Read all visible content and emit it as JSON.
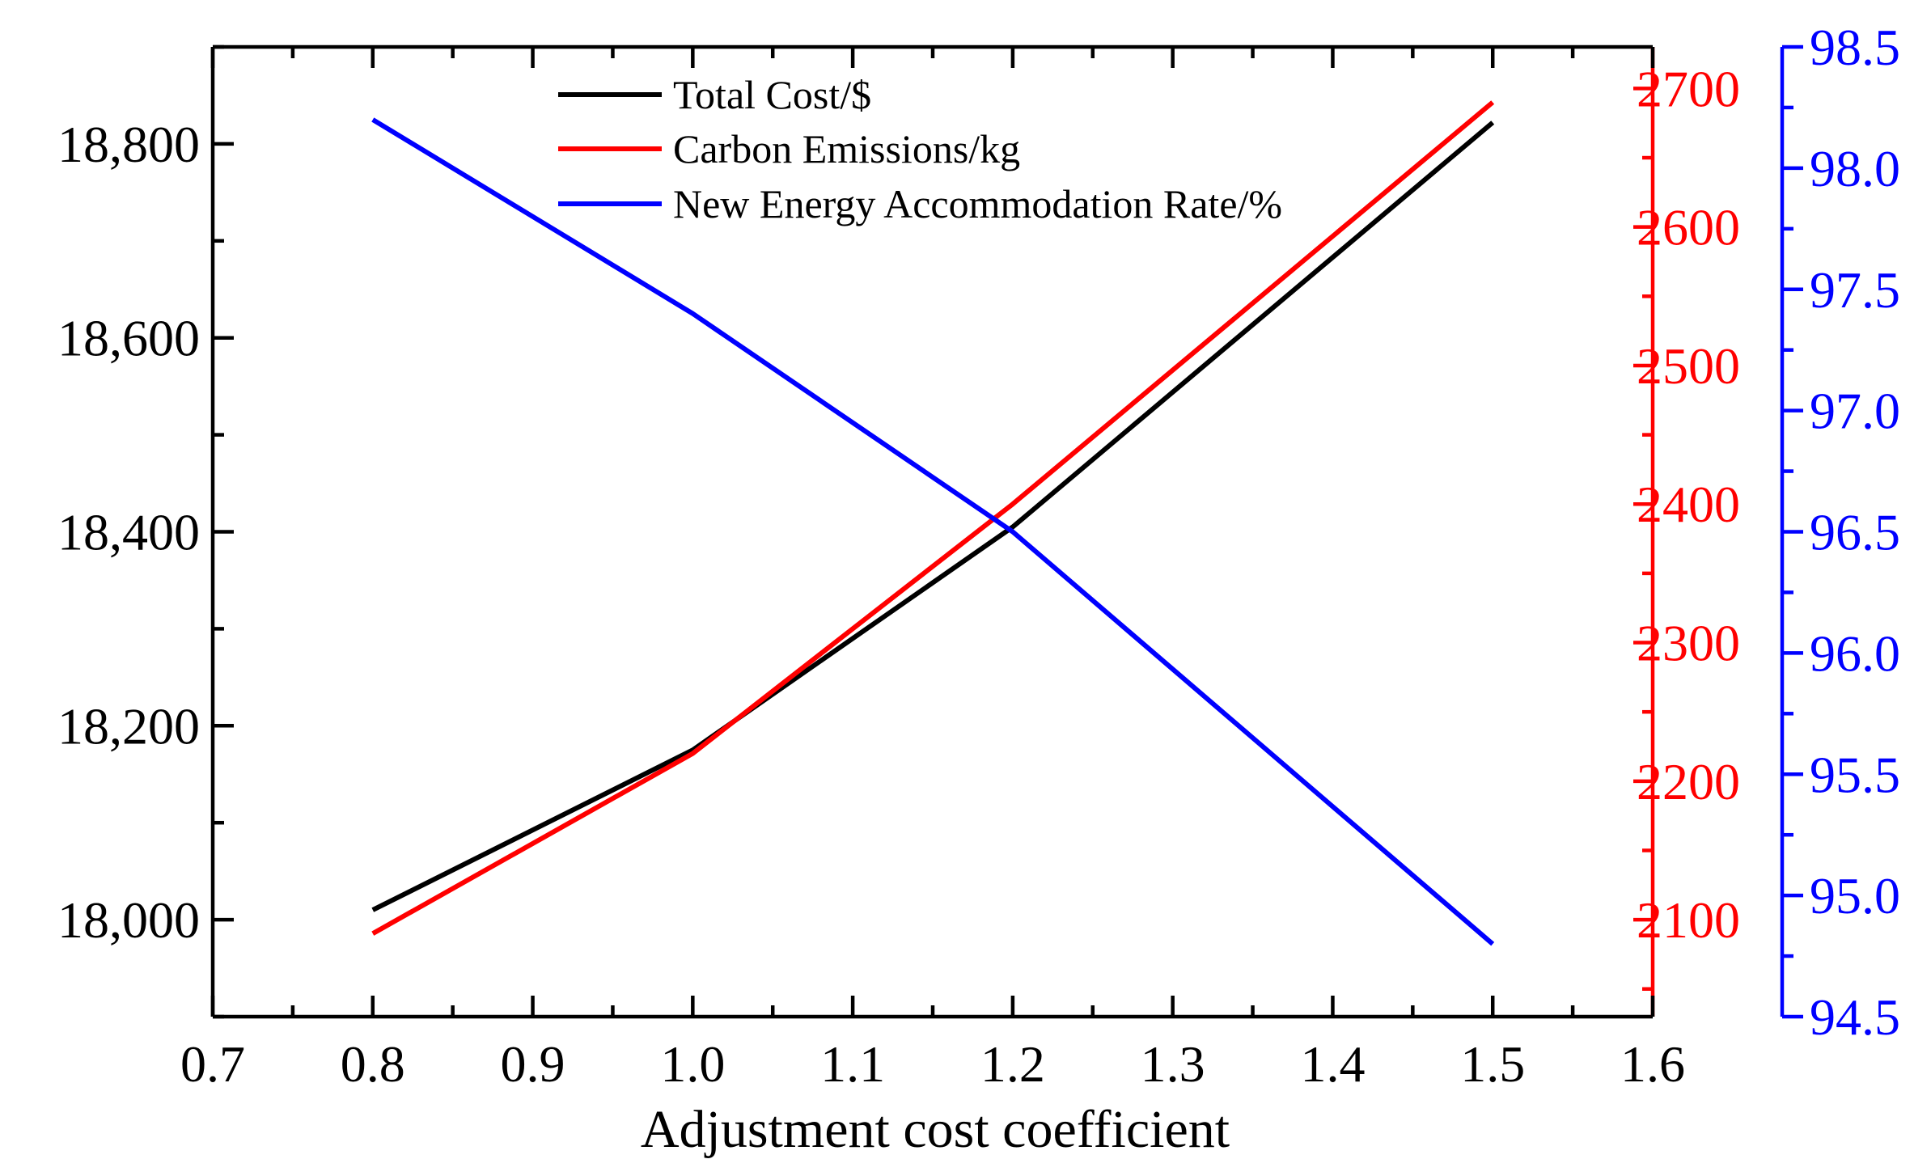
{
  "chart_data": {
    "type": "line",
    "title": "",
    "xlabel": "Adjustment cost coefficient",
    "xlim": [
      0.7,
      1.6
    ],
    "x_ticks": [
      "0.7",
      "0.8",
      "0.9",
      "1.0",
      "1.1",
      "1.2",
      "1.3",
      "1.4",
      "1.5",
      "1.6"
    ],
    "x": [
      0.8,
      1.0,
      1.2,
      1.5
    ],
    "axes": {
      "left": {
        "ylim": [
          17900,
          18900
        ],
        "ticks": [
          18000,
          18200,
          18400,
          18600,
          18800
        ],
        "tick_labels": [
          "18,000",
          "18,200",
          "18,400",
          "18,600",
          "18,800"
        ],
        "color": "#000000"
      },
      "right_inner": {
        "ylim": [
          2030,
          2730
        ],
        "ticks": [
          2100,
          2200,
          2300,
          2400,
          2500,
          2600,
          2700
        ],
        "tick_labels": [
          "2100",
          "2200",
          "2300",
          "2400",
          "2500",
          "2600",
          "2700"
        ],
        "color": "#ff0000"
      },
      "right_outer": {
        "ylim": [
          94.5,
          98.5
        ],
        "ticks": [
          94.5,
          95.0,
          95.5,
          96.0,
          96.5,
          97.0,
          97.5,
          98.0,
          98.5
        ],
        "tick_labels": [
          "94.5",
          "95.0",
          "95.5",
          "96.0",
          "96.5",
          "97.0",
          "97.5",
          "98.0",
          "98.5"
        ],
        "color": "#0000ff"
      }
    },
    "series": [
      {
        "name": "Total Cost/$",
        "axis": "left",
        "color": "#000000",
        "values": [
          18010,
          18175,
          18405,
          18822
        ]
      },
      {
        "name": "Carbon Emissions/kg",
        "axis": "right_inner",
        "color": "#ff0000",
        "values": [
          2090,
          2220,
          2400,
          2690
        ]
      },
      {
        "name": "New Energy Accommodation Rate/%",
        "axis": "right_outer",
        "color": "#0000ff",
        "values": [
          98.2,
          97.4,
          96.5,
          94.8
        ]
      }
    ],
    "legend_position": "top-left"
  }
}
